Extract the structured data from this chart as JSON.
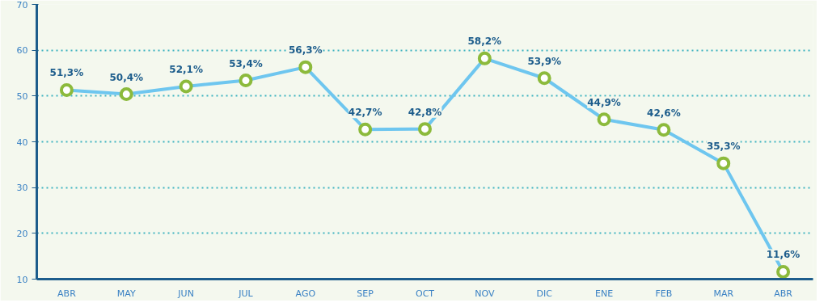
{
  "chart_data": {
    "type": "line",
    "categories": [
      "ABR",
      "MAY",
      "JUN",
      "JUL",
      "AGO",
      "SEP",
      "OCT",
      "NOV",
      "DIC",
      "ENE",
      "FEB",
      "MAR",
      "ABR"
    ],
    "series": [
      {
        "color": "#6ec6ef",
        "values": [
          51.3,
          50.4,
          52.1,
          53.4,
          56.3,
          42.7,
          42.8,
          58.2,
          53.9,
          44.9,
          42.6,
          35.3,
          11.6
        ],
        "value_labels": [
          "51,3%",
          "50,4%",
          "52,1%",
          "53,4%",
          "56,3%",
          "42,7%",
          "42,8%",
          "58,2%",
          "53,9%",
          "44,9%",
          "42,6%",
          "35,3%",
          "11,6%"
        ]
      }
    ],
    "ylim": [
      10,
      70
    ],
    "yticks": [
      10,
      20,
      30,
      40,
      50,
      60,
      70
    ],
    "grid": "y",
    "marker": "circle",
    "line_style": "solid"
  }
}
